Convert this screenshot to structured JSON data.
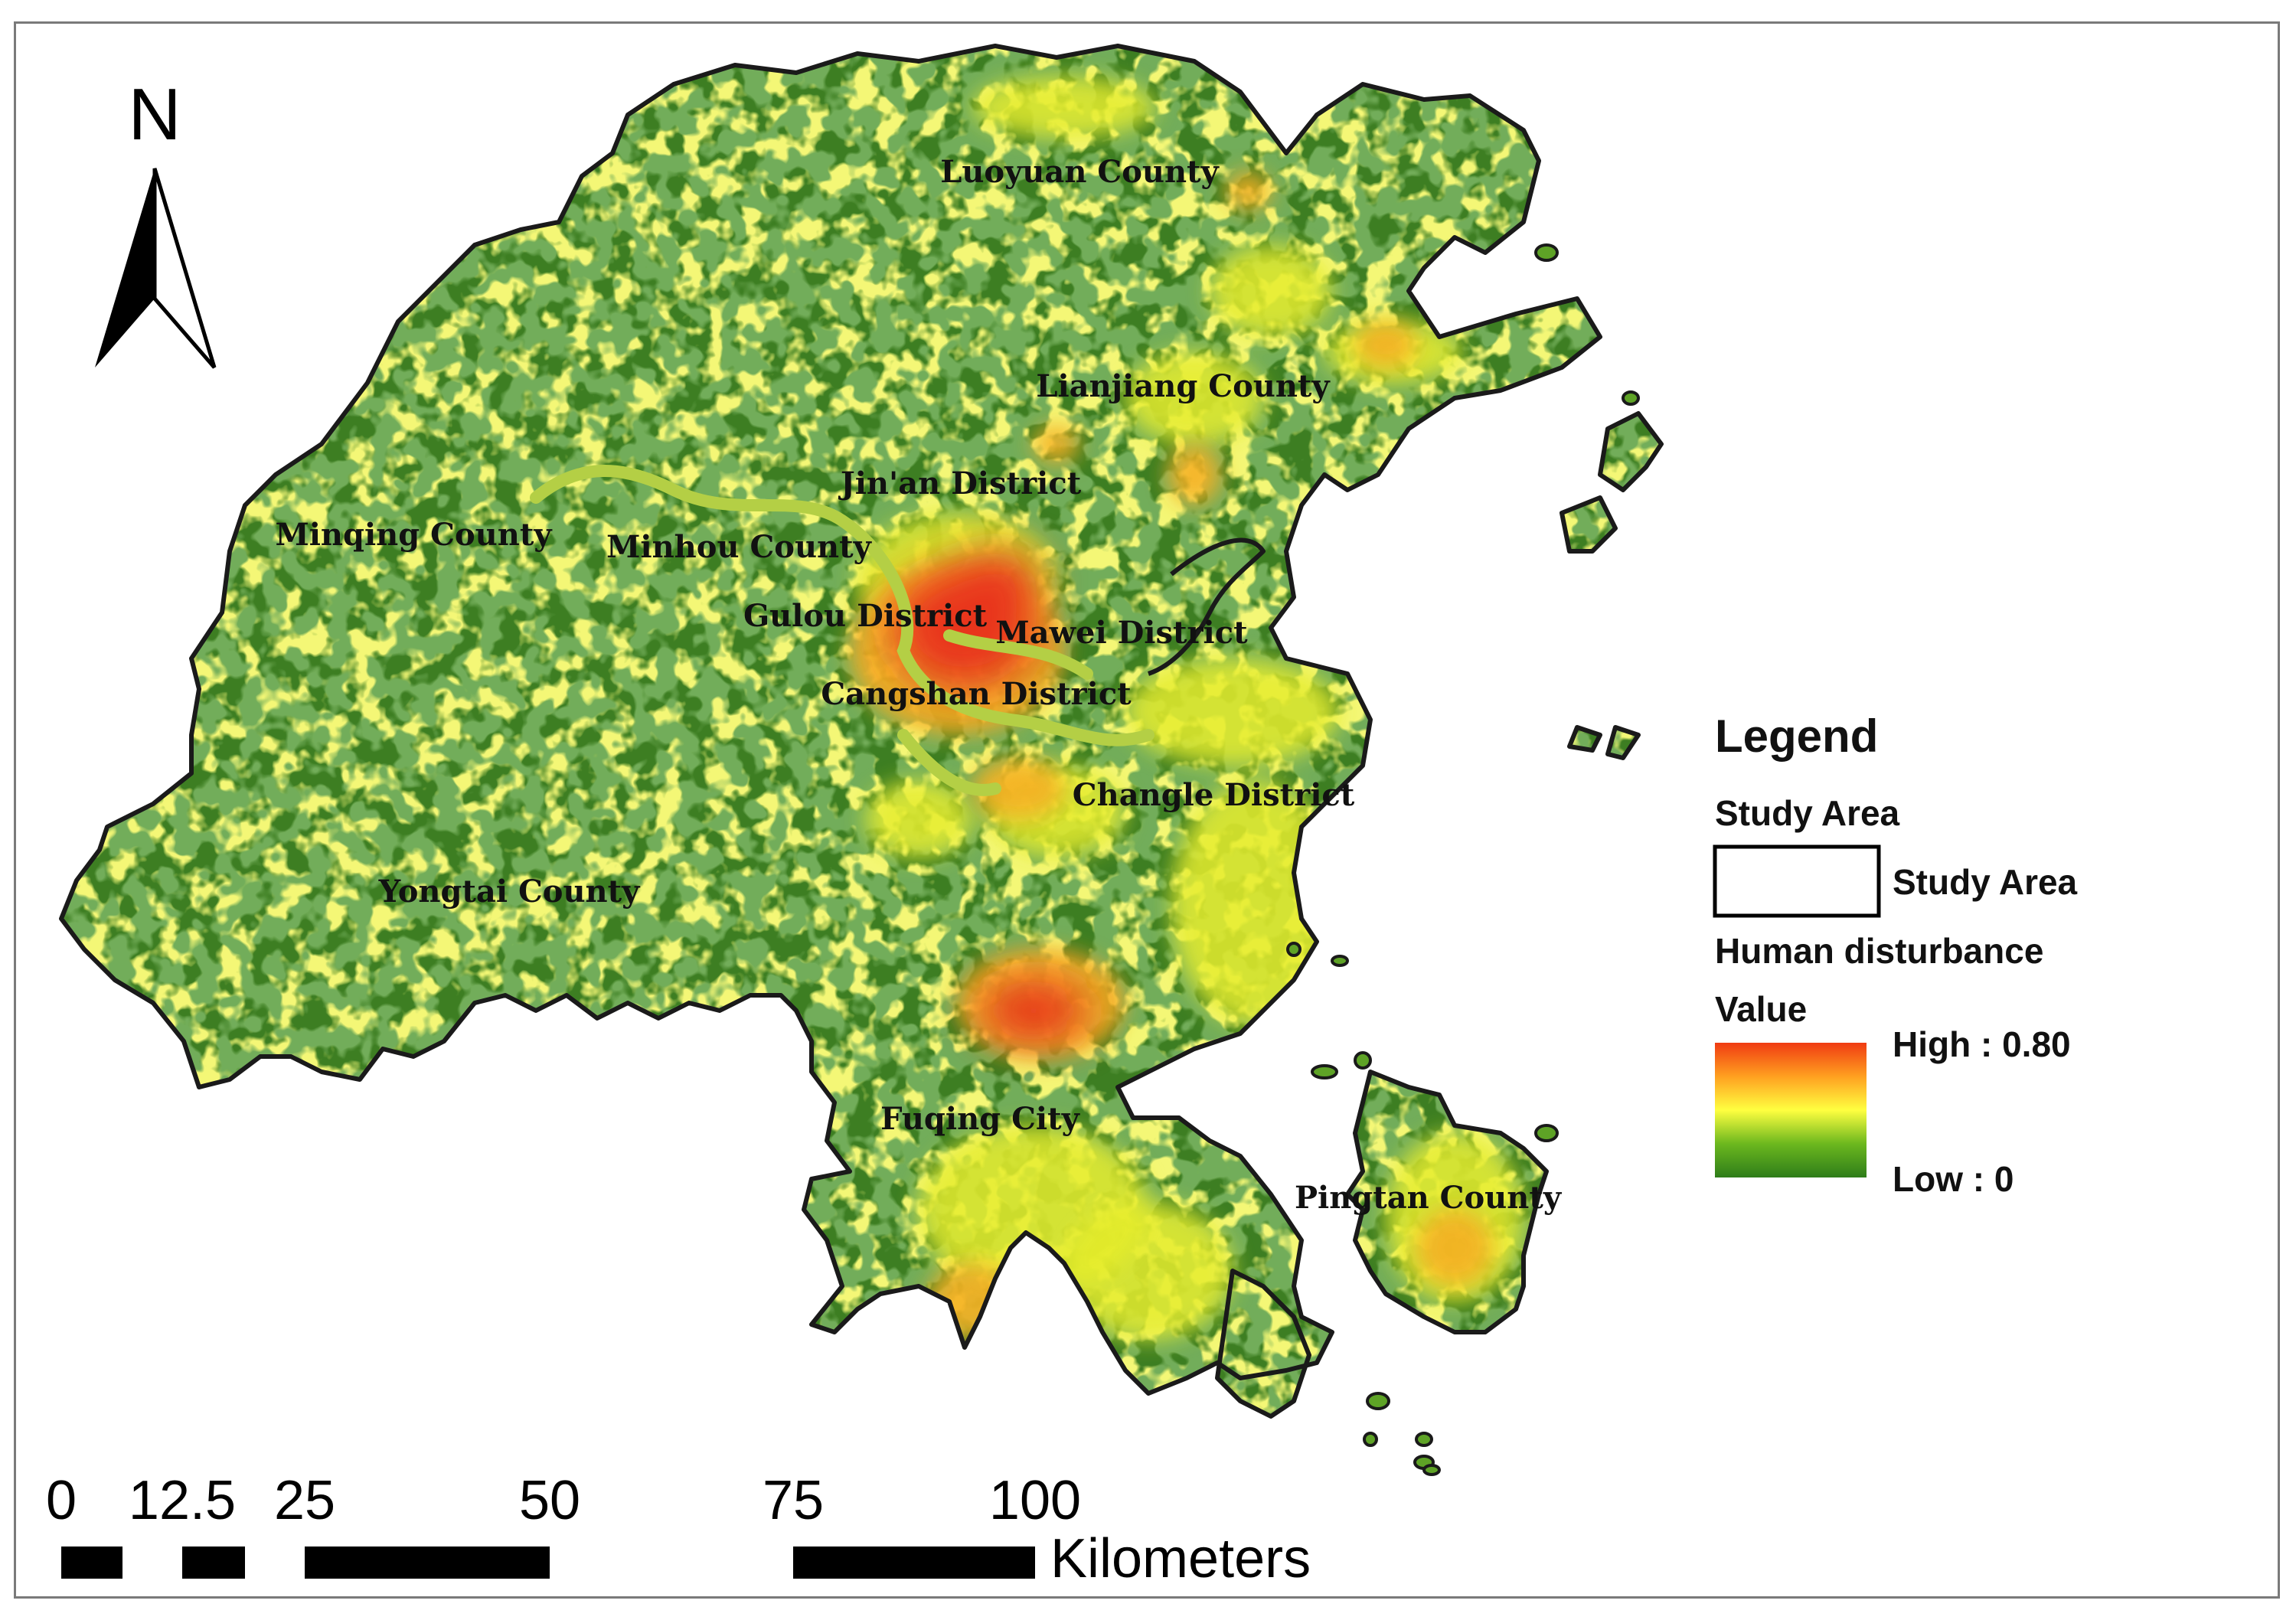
{
  "north_arrow": {
    "letter": "N"
  },
  "places": [
    {
      "name": "Luoyuan County"
    },
    {
      "name": "Lianjiang County"
    },
    {
      "name": "Jin'an District"
    },
    {
      "name": "Minqing County"
    },
    {
      "name": "Minhou County"
    },
    {
      "name": "Gulou District"
    },
    {
      "name": "Mawei District"
    },
    {
      "name": "Cangshan District"
    },
    {
      "name": "Changle District"
    },
    {
      "name": "Yongtai County"
    },
    {
      "name": "Fuqing City"
    },
    {
      "name": "Pingtan County"
    }
  ],
  "legend": {
    "title": "Legend",
    "study_area_heading": "Study Area",
    "study_area_label": "Study Area",
    "disturbance_heading": "Human disturbance",
    "value_label": "Value",
    "high_label": "High : 0.80",
    "low_label": "Low : 0",
    "ramp_colors": [
      "#f03b12",
      "#ffa020",
      "#ffff40",
      "#6cb81e",
      "#2e7d1a"
    ]
  },
  "scale_bar": {
    "ticks": [
      "0",
      "12.5",
      "25",
      "50",
      "75",
      "100"
    ],
    "unit": "Kilometers"
  },
  "colors": {
    "forest": "#3d7e22",
    "vegetation_mid": "#5ea326",
    "low_disturbance": "#e5ec2d",
    "mid_disturbance": "#f5b025",
    "high_disturbance": "#e8361a",
    "boundary": "#1a1a1a",
    "river": "#b4cf45"
  }
}
